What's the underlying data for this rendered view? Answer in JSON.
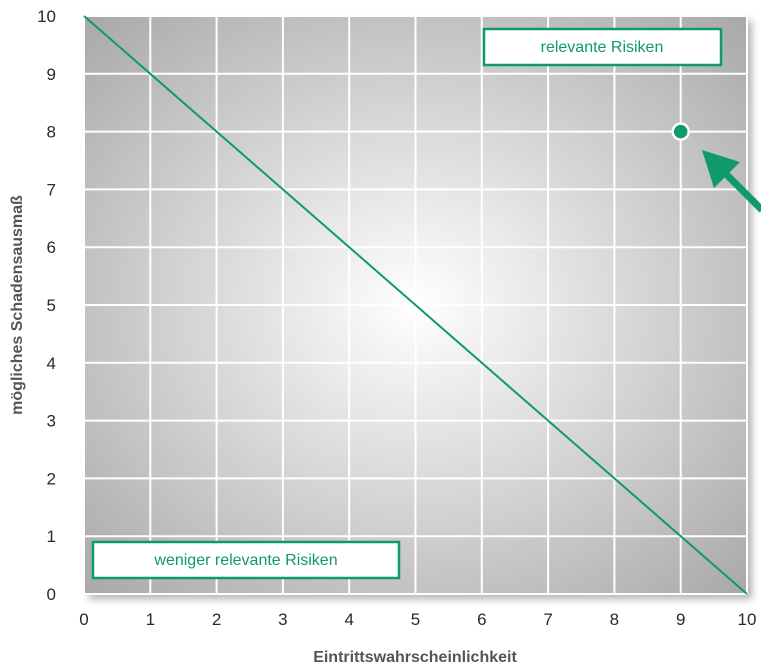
{
  "chart_data": {
    "type": "scatter",
    "title": "",
    "xlabel": "Eintrittswahrscheinlichkeit",
    "ylabel": "mögliches Schadensausmaß",
    "xlim": [
      0,
      10
    ],
    "ylim": [
      0,
      10
    ],
    "x_ticks": [
      0,
      1,
      2,
      3,
      4,
      5,
      6,
      7,
      8,
      9,
      10
    ],
    "y_ticks": [
      0,
      1,
      2,
      3,
      4,
      5,
      6,
      7,
      8,
      9,
      10
    ],
    "grid": true,
    "threshold_line": {
      "x": [
        0,
        10
      ],
      "y": [
        10,
        0
      ]
    },
    "points": [
      {
        "x": 9,
        "y": 8
      }
    ],
    "annotations": {
      "upper_zone": "relevante Risiken",
      "lower_zone": "weniger relevante Risiken"
    },
    "colors": {
      "accent": "#0e9a6a",
      "grid": "#ffffff",
      "plot_center": "#ffffff",
      "plot_edge": "#a9a9a9"
    }
  }
}
